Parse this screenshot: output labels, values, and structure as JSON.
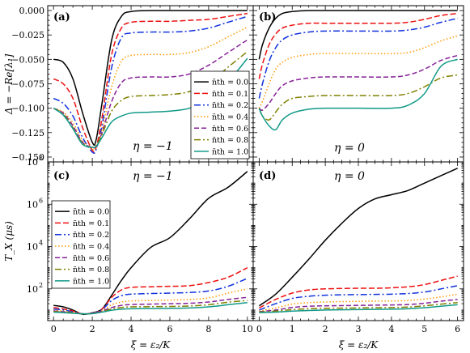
{
  "colors": {
    "n0": "#000000",
    "n01": "#ee1111",
    "n02": "#1133dd",
    "n04": "#ff9900",
    "n06": "#882299",
    "n08": "#808000",
    "n10": "#119988"
  },
  "chart_data": [
    {
      "panel": "(a)",
      "type": "line",
      "annotation": "η = −1",
      "ylabel": "Δ = −Re[λ₁]",
      "xlim": [
        -0.3,
        10.3
      ],
      "ylim": [
        -0.155,
        0.005
      ],
      "yticks": [
        0.0,
        -0.025,
        -0.05,
        -0.075,
        -0.1,
        -0.125,
        -0.15
      ],
      "ytick_labels": [
        "0.000",
        "−0.025",
        "−0.050",
        "−0.075",
        "−0.100",
        "−0.125",
        "−0.150"
      ],
      "legend": "right",
      "x": [
        0,
        0.5,
        1,
        1.5,
        2,
        2.2,
        2.5,
        3,
        3.5,
        4,
        5,
        6,
        7,
        8,
        9,
        10
      ],
      "series": [
        {
          "name": "n̄th = 0.0",
          "color_key": "n0",
          "dash": "",
          "values": [
            -0.05,
            -0.053,
            -0.07,
            -0.105,
            -0.135,
            -0.132,
            -0.095,
            -0.03,
            -0.006,
            -0.001,
            0.0,
            0.0,
            0.0,
            0.0,
            0.0,
            0.0
          ]
        },
        {
          "name": "n̄th = 0.1",
          "color_key": "n01",
          "dash": "7,3",
          "values": [
            -0.07,
            -0.075,
            -0.09,
            -0.12,
            -0.143,
            -0.14,
            -0.11,
            -0.045,
            -0.018,
            -0.012,
            -0.011,
            -0.011,
            -0.01,
            -0.009,
            -0.006,
            -0.003
          ]
        },
        {
          "name": "n̄th = 0.2",
          "color_key": "n02",
          "dash": "8,3,2,3",
          "values": [
            -0.09,
            -0.095,
            -0.108,
            -0.13,
            -0.145,
            -0.142,
            -0.118,
            -0.058,
            -0.028,
            -0.023,
            -0.022,
            -0.022,
            -0.021,
            -0.018,
            -0.012,
            -0.006
          ]
        },
        {
          "name": "n̄th = 0.4",
          "color_key": "n04",
          "dash": "1.5,2.5",
          "values": [
            -0.1,
            -0.104,
            -0.115,
            -0.133,
            -0.142,
            -0.14,
            -0.122,
            -0.078,
            -0.052,
            -0.046,
            -0.045,
            -0.045,
            -0.043,
            -0.037,
            -0.027,
            -0.017
          ]
        },
        {
          "name": "n̄th = 0.6",
          "color_key": "n06",
          "dash": "6,3",
          "values": [
            -0.1,
            -0.105,
            -0.118,
            -0.135,
            -0.14,
            -0.139,
            -0.125,
            -0.093,
            -0.074,
            -0.069,
            -0.068,
            -0.068,
            -0.065,
            -0.056,
            -0.043,
            -0.03
          ]
        },
        {
          "name": "n̄th = 0.8",
          "color_key": "n08",
          "dash": "8,3,2,3",
          "values": [
            -0.1,
            -0.106,
            -0.12,
            -0.136,
            -0.14,
            -0.138,
            -0.127,
            -0.103,
            -0.092,
            -0.088,
            -0.087,
            -0.086,
            -0.083,
            -0.074,
            -0.058,
            -0.042
          ]
        },
        {
          "name": "n̄th = 1.0",
          "color_key": "n10",
          "dash": "",
          "values": [
            -0.1,
            -0.107,
            -0.121,
            -0.137,
            -0.14,
            -0.139,
            -0.13,
            -0.114,
            -0.108,
            -0.105,
            -0.104,
            -0.103,
            -0.1,
            -0.091,
            -0.073,
            -0.049
          ]
        }
      ]
    },
    {
      "panel": "(b)",
      "type": "line",
      "annotation": "η = 0",
      "xlim": [
        -0.18,
        6.18
      ],
      "ylim": [
        -0.155,
        0.005
      ],
      "x": [
        0,
        0.1,
        0.3,
        0.5,
        0.7,
        1,
        1.5,
        2,
        3,
        4,
        4.5,
        5,
        5.5,
        6
      ],
      "series": [
        {
          "name": "n̄th = 0.0",
          "color_key": "n0",
          "dash": "",
          "values": [
            -0.05,
            -0.035,
            -0.018,
            -0.008,
            -0.003,
            -0.001,
            0.0,
            0.0,
            0.0,
            0.0,
            0.0,
            0.0,
            0.0,
            0.0
          ]
        },
        {
          "name": "n̄th = 0.1",
          "color_key": "n01",
          "dash": "7,3",
          "values": [
            -0.07,
            -0.055,
            -0.035,
            -0.024,
            -0.018,
            -0.015,
            -0.013,
            -0.013,
            -0.013,
            -0.013,
            -0.012,
            -0.009,
            -0.005,
            -0.003
          ]
        },
        {
          "name": "n̄th = 0.2",
          "color_key": "n02",
          "dash": "8,3,2,3",
          "values": [
            -0.09,
            -0.075,
            -0.052,
            -0.038,
            -0.03,
            -0.025,
            -0.022,
            -0.021,
            -0.021,
            -0.021,
            -0.02,
            -0.017,
            -0.012,
            -0.008
          ]
        },
        {
          "name": "n̄th = 0.4",
          "color_key": "n04",
          "dash": "1.5,2.5",
          "values": [
            -0.1,
            -0.093,
            -0.075,
            -0.06,
            -0.053,
            -0.048,
            -0.045,
            -0.044,
            -0.044,
            -0.044,
            -0.043,
            -0.038,
            -0.031,
            -0.026
          ]
        },
        {
          "name": "n̄th = 0.6",
          "color_key": "n06",
          "dash": "6,3",
          "values": [
            -0.1,
            -0.102,
            -0.095,
            -0.085,
            -0.077,
            -0.072,
            -0.069,
            -0.068,
            -0.068,
            -0.068,
            -0.066,
            -0.06,
            -0.051,
            -0.046
          ]
        },
        {
          "name": "n̄th = 0.8",
          "color_key": "n08",
          "dash": "8,3,2,3",
          "values": [
            -0.1,
            -0.108,
            -0.112,
            -0.104,
            -0.096,
            -0.09,
            -0.088,
            -0.087,
            -0.087,
            -0.087,
            -0.085,
            -0.078,
            -0.069,
            -0.066
          ]
        },
        {
          "name": "n̄th = 1.0",
          "color_key": "n10",
          "dash": "",
          "values": [
            -0.1,
            -0.108,
            -0.118,
            -0.122,
            -0.112,
            -0.105,
            -0.101,
            -0.1,
            -0.1,
            -0.1,
            -0.097,
            -0.085,
            -0.057,
            -0.05
          ]
        }
      ]
    },
    {
      "panel": "(c)",
      "type": "line",
      "annotation": "η = −1",
      "ylabel": "T_X (μs)",
      "xlabel": "ξ = ε₂/K",
      "xlim": [
        -0.3,
        10.3
      ],
      "ylog_lim": [
        0.5,
        8.0
      ],
      "yticks_log": [
        2,
        4,
        6,
        8
      ],
      "ytick_labels": [
        "10",
        "10",
        "10",
        "10"
      ],
      "ytick_exponents": [
        "2",
        "4",
        "6",
        "8"
      ],
      "xticks": [
        0,
        2,
        4,
        6,
        8,
        10
      ],
      "xtick_labels": [
        "0",
        "2",
        "4",
        "6",
        "8",
        "10"
      ],
      "legend": "left",
      "x": [
        0,
        0.5,
        1,
        1.5,
        2,
        2.5,
        3,
        3.5,
        4,
        5,
        6,
        7,
        8,
        9,
        10
      ],
      "series": [
        {
          "name": "n̄th = 0.0",
          "color_key": "n0",
          "dash": "",
          "values": [
            1.22,
            1.15,
            1.0,
            0.8,
            0.87,
            1.05,
            1.7,
            2.4,
            3.0,
            3.95,
            4.42,
            5.3,
            6.28,
            6.8,
            7.55
          ]
        },
        {
          "name": "n̄th = 0.1",
          "color_key": "n01",
          "dash": "7,3",
          "values": [
            1.12,
            1.05,
            0.96,
            0.82,
            0.86,
            1.05,
            1.6,
            1.95,
            2.07,
            2.1,
            2.12,
            2.15,
            2.3,
            2.55,
            3.0
          ]
        },
        {
          "name": "n̄th = 0.2",
          "color_key": "n02",
          "dash": "8,3,2,3",
          "values": [
            1.05,
            1.0,
            0.92,
            0.82,
            0.85,
            1.02,
            1.45,
            1.68,
            1.75,
            1.78,
            1.8,
            1.83,
            1.9,
            2.12,
            2.5
          ]
        },
        {
          "name": "n̄th = 0.4",
          "color_key": "n04",
          "dash": "1.5,2.5",
          "values": [
            1.0,
            0.95,
            0.9,
            0.82,
            0.84,
            0.98,
            1.25,
            1.38,
            1.43,
            1.45,
            1.47,
            1.5,
            1.57,
            1.8,
            2.0
          ]
        },
        {
          "name": "n̄th = 0.6",
          "color_key": "n06",
          "dash": "6,3",
          "values": [
            0.96,
            0.92,
            0.88,
            0.82,
            0.84,
            0.95,
            1.12,
            1.22,
            1.26,
            1.28,
            1.3,
            1.32,
            1.38,
            1.5,
            1.6
          ]
        },
        {
          "name": "n̄th = 0.8",
          "color_key": "n08",
          "dash": "8,3,2,3",
          "values": [
            0.93,
            0.9,
            0.87,
            0.82,
            0.83,
            0.92,
            1.05,
            1.12,
            1.15,
            1.16,
            1.17,
            1.19,
            1.25,
            1.37,
            1.45
          ]
        },
        {
          "name": "n̄th = 1.0",
          "color_key": "n10",
          "dash": "",
          "values": [
            0.9,
            0.88,
            0.85,
            0.82,
            0.83,
            0.9,
            0.99,
            1.04,
            1.06,
            1.07,
            1.08,
            1.1,
            1.15,
            1.25,
            1.35
          ]
        }
      ]
    },
    {
      "panel": "(d)",
      "type": "line",
      "annotation": "η = 0",
      "xlabel": "ξ = ε₂/K",
      "xlim": [
        -0.18,
        6.18
      ],
      "ylog_lim": [
        0.5,
        8.0
      ],
      "xticks": [
        0,
        1,
        2,
        3,
        4,
        5,
        6
      ],
      "xtick_labels": [
        "0",
        "1",
        "2",
        "3",
        "4",
        "5",
        "6"
      ],
      "x": [
        0,
        0.5,
        1,
        1.5,
        2,
        2.5,
        3,
        3.5,
        4,
        4.5,
        5,
        5.5,
        6
      ],
      "series": [
        {
          "name": "n̄th = 0.0",
          "color_key": "n0",
          "dash": "",
          "values": [
            1.2,
            1.75,
            2.55,
            3.4,
            4.3,
            5.1,
            5.8,
            6.25,
            6.45,
            6.65,
            7.0,
            7.35,
            7.7
          ]
        },
        {
          "name": "n̄th = 0.1",
          "color_key": "n01",
          "dash": "7,3",
          "values": [
            1.1,
            1.5,
            1.8,
            1.95,
            2.0,
            2.02,
            2.03,
            2.03,
            2.05,
            2.1,
            2.2,
            2.4,
            2.6
          ]
        },
        {
          "name": "n̄th = 0.2",
          "color_key": "n02",
          "dash": "8,3,2,3",
          "values": [
            1.0,
            1.3,
            1.55,
            1.65,
            1.7,
            1.72,
            1.73,
            1.74,
            1.75,
            1.78,
            1.85,
            2.0,
            2.15
          ]
        },
        {
          "name": "n̄th = 0.4",
          "color_key": "n04",
          "dash": "1.5,2.5",
          "values": [
            0.95,
            1.1,
            1.28,
            1.35,
            1.38,
            1.4,
            1.41,
            1.42,
            1.43,
            1.45,
            1.52,
            1.62,
            1.75
          ]
        },
        {
          "name": "n̄th = 0.6",
          "color_key": "n06",
          "dash": "6,3",
          "values": [
            0.92,
            1.0,
            1.12,
            1.18,
            1.2,
            1.21,
            1.22,
            1.23,
            1.24,
            1.26,
            1.32,
            1.42,
            1.5
          ]
        },
        {
          "name": "n̄th = 0.8",
          "color_key": "n08",
          "dash": "8,3,2,3",
          "values": [
            0.9,
            0.95,
            1.02,
            1.06,
            1.08,
            1.09,
            1.1,
            1.11,
            1.12,
            1.14,
            1.2,
            1.28,
            1.35
          ]
        },
        {
          "name": "n̄th = 1.0",
          "color_key": "n10",
          "dash": "",
          "values": [
            0.88,
            0.9,
            0.95,
            0.98,
            1.0,
            1.01,
            1.02,
            1.03,
            1.04,
            1.06,
            1.11,
            1.18,
            1.25
          ]
        }
      ]
    }
  ]
}
